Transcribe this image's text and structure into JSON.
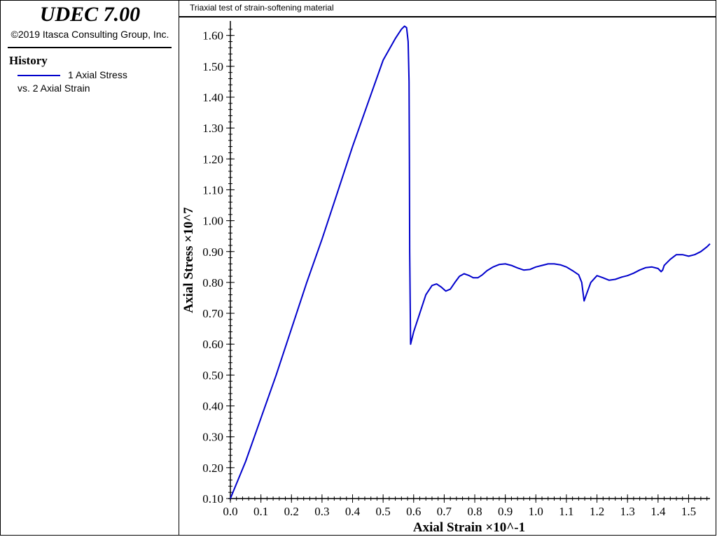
{
  "app": {
    "title": "UDEC 7.00",
    "copyright": "©2019 Itasca Consulting Group, Inc."
  },
  "legend": {
    "heading": "History",
    "entry_line1": "1 Axial Stress",
    "entry_line2": "vs. 2 Axial Strain",
    "color": "#0000cc"
  },
  "chart_data": {
    "type": "line",
    "title": "Triaxial test of strain-softening material",
    "xlabel": "Axial Strain ×10^-1",
    "ylabel": "Axial Stress ×10^7",
    "xlim": [
      0.0,
      1.57
    ],
    "ylim": [
      0.1,
      1.64
    ],
    "xticks": [
      "0.0",
      "0.1",
      "0.2",
      "0.3",
      "0.4",
      "0.5",
      "0.6",
      "0.7",
      "0.8",
      "0.9",
      "1.0",
      "1.1",
      "1.2",
      "1.3",
      "1.4",
      "1.5"
    ],
    "yticks": [
      "0.10",
      "0.20",
      "0.30",
      "0.40",
      "0.50",
      "0.60",
      "0.70",
      "0.80",
      "0.90",
      "1.00",
      "1.10",
      "1.20",
      "1.30",
      "1.40",
      "1.50",
      "1.60"
    ],
    "grid": false,
    "series": [
      {
        "name": "1 Axial Stress",
        "color": "#0000cc",
        "x": [
          0.0,
          0.05,
          0.1,
          0.15,
          0.2,
          0.25,
          0.3,
          0.35,
          0.4,
          0.45,
          0.5,
          0.54,
          0.56,
          0.57,
          0.577,
          0.582,
          0.585,
          0.586,
          0.587,
          0.59,
          0.6,
          0.62,
          0.64,
          0.66,
          0.675,
          0.69,
          0.705,
          0.72,
          0.735,
          0.75,
          0.765,
          0.78,
          0.795,
          0.81,
          0.825,
          0.84,
          0.86,
          0.88,
          0.9,
          0.92,
          0.94,
          0.96,
          0.98,
          1.0,
          1.02,
          1.04,
          1.06,
          1.08,
          1.1,
          1.12,
          1.14,
          1.15,
          1.158,
          1.165,
          1.18,
          1.2,
          1.22,
          1.24,
          1.26,
          1.28,
          1.3,
          1.32,
          1.34,
          1.36,
          1.38,
          1.4,
          1.41,
          1.415,
          1.42,
          1.44,
          1.46,
          1.48,
          1.5,
          1.52,
          1.54,
          1.56,
          1.57
        ],
        "y": [
          0.1,
          0.22,
          0.36,
          0.5,
          0.65,
          0.8,
          0.94,
          1.09,
          1.24,
          1.38,
          1.52,
          1.59,
          1.62,
          1.63,
          1.625,
          1.58,
          1.45,
          1.2,
          0.9,
          0.6,
          0.64,
          0.7,
          0.76,
          0.79,
          0.795,
          0.785,
          0.772,
          0.778,
          0.8,
          0.82,
          0.828,
          0.823,
          0.815,
          0.815,
          0.825,
          0.838,
          0.85,
          0.858,
          0.86,
          0.855,
          0.847,
          0.84,
          0.842,
          0.85,
          0.855,
          0.86,
          0.86,
          0.857,
          0.85,
          0.838,
          0.825,
          0.8,
          0.74,
          0.76,
          0.8,
          0.822,
          0.815,
          0.807,
          0.81,
          0.817,
          0.822,
          0.83,
          0.84,
          0.848,
          0.85,
          0.845,
          0.835,
          0.84,
          0.855,
          0.875,
          0.89,
          0.89,
          0.885,
          0.89,
          0.9,
          0.915,
          0.925
        ]
      }
    ]
  }
}
